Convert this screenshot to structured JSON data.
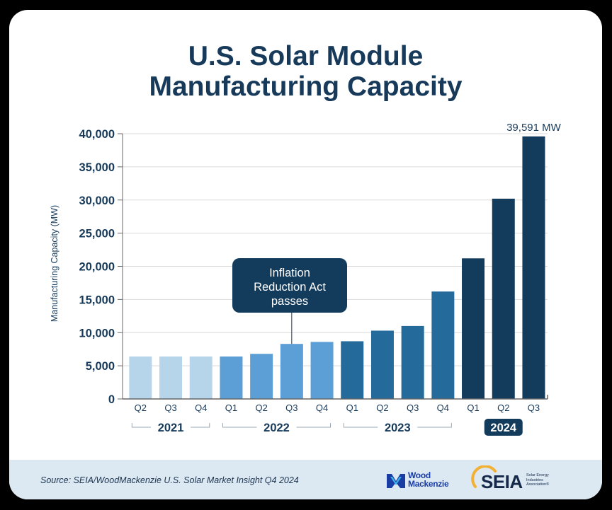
{
  "title_line1": "U.S. Solar Module",
  "title_line2": "Manufacturing Capacity",
  "source": "Source: SEIA/WoodMackenzie U.S. Solar Market Insight Q4 2024",
  "logos": {
    "woodmac_line1": "Wood",
    "woodmac_line2": "Mackenzie",
    "seia": "SEIA",
    "seia_sub1": "Solar Energy",
    "seia_sub2": "Industries",
    "seia_sub3": "Association®"
  },
  "annotation": {
    "line1": "Inflation",
    "line2": "Reduction Act",
    "line3": "passes"
  },
  "colors": {
    "navy": "#173a5a",
    "c2021": "#b6d5ea",
    "c2022": "#5c9fd6",
    "c2023": "#246b9c",
    "c2024": "#133b5c",
    "grid": "#d9d9d9",
    "axis": "#666666"
  },
  "chart_data": {
    "type": "bar",
    "title": "U.S. Solar Module Manufacturing Capacity",
    "xlabel": "",
    "ylabel": "Manufacturing Capacity (MW)",
    "ylim": [
      0,
      40000
    ],
    "yticks": [
      0,
      5000,
      10000,
      15000,
      20000,
      25000,
      30000,
      35000,
      40000
    ],
    "ytick_labels": [
      "0",
      "5,000",
      "10,000",
      "15,000",
      "20,000",
      "25,000",
      "30,000",
      "35,000",
      "40,000"
    ],
    "categories": [
      "Q2",
      "Q3",
      "Q4",
      "Q1",
      "Q2",
      "Q3",
      "Q4",
      "Q1",
      "Q2",
      "Q3",
      "Q4",
      "Q1",
      "Q2",
      "Q3"
    ],
    "years": [
      "2021",
      "2021",
      "2021",
      "2022",
      "2022",
      "2022",
      "2022",
      "2023",
      "2023",
      "2023",
      "2023",
      "2024",
      "2024",
      "2024"
    ],
    "values": [
      6400,
      6400,
      6400,
      6400,
      6800,
      8300,
      8600,
      8700,
      10300,
      11000,
      16200,
      21200,
      30200,
      39591
    ],
    "year_groups": [
      {
        "label": "2021",
        "start": 0,
        "end": 2
      },
      {
        "label": "2022",
        "start": 3,
        "end": 6
      },
      {
        "label": "2023",
        "start": 7,
        "end": 10
      },
      {
        "label": "2024",
        "start": 11,
        "end": 13
      }
    ],
    "data_labels": [
      {
        "index": 13,
        "text": "39,591 MW"
      }
    ],
    "grid": true,
    "legend": "none"
  }
}
